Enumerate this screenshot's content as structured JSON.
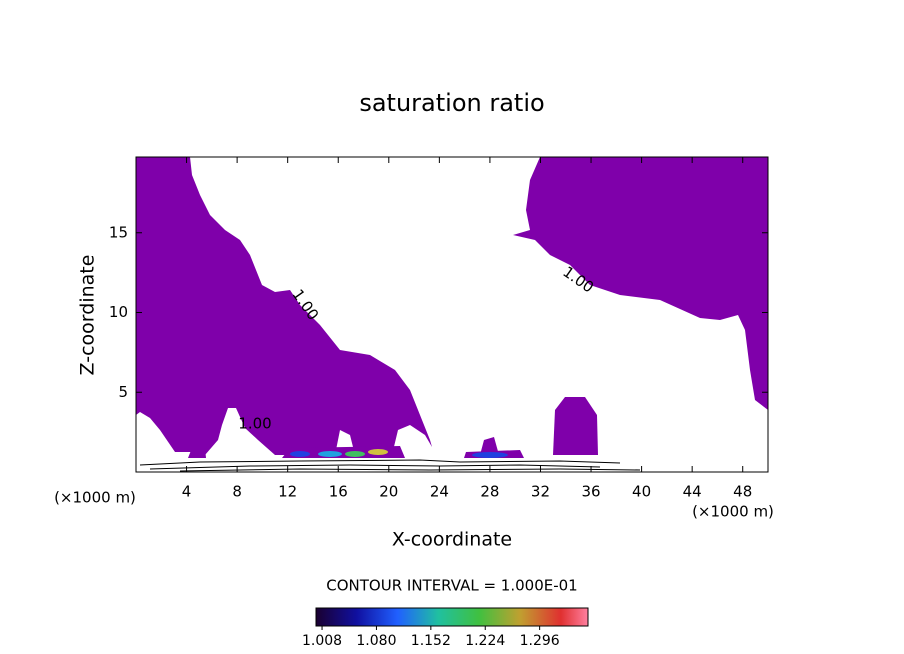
{
  "chart_data": {
    "type": "contour",
    "title": "saturation ratio",
    "x_label": "X-coordinate",
    "y_label": "Z-coordinate",
    "x_unit_label": "(×1000 m)",
    "xlim": [
      0,
      50
    ],
    "ylim": [
      0,
      19.75
    ],
    "xticks": [
      4,
      8,
      12,
      16,
      20,
      24,
      28,
      32,
      36,
      40,
      44,
      48
    ],
    "yticks": [
      5,
      10,
      15
    ],
    "region_color": "#7f00aa",
    "contour_labels": [
      "1.00",
      "1.00",
      "1.00"
    ],
    "contour_interval_label": "CONTOUR INTERVAL = 1.000E-01",
    "colorbar": {
      "clim": [
        1.0,
        1.36
      ],
      "ticks": [
        {
          "value": 1.008,
          "label": "1.008"
        },
        {
          "value": 1.08,
          "label": "1.080"
        },
        {
          "value": 1.152,
          "label": "1.152"
        },
        {
          "value": 1.224,
          "label": "1.224"
        },
        {
          "value": 1.296,
          "label": "1.296"
        }
      ]
    }
  }
}
